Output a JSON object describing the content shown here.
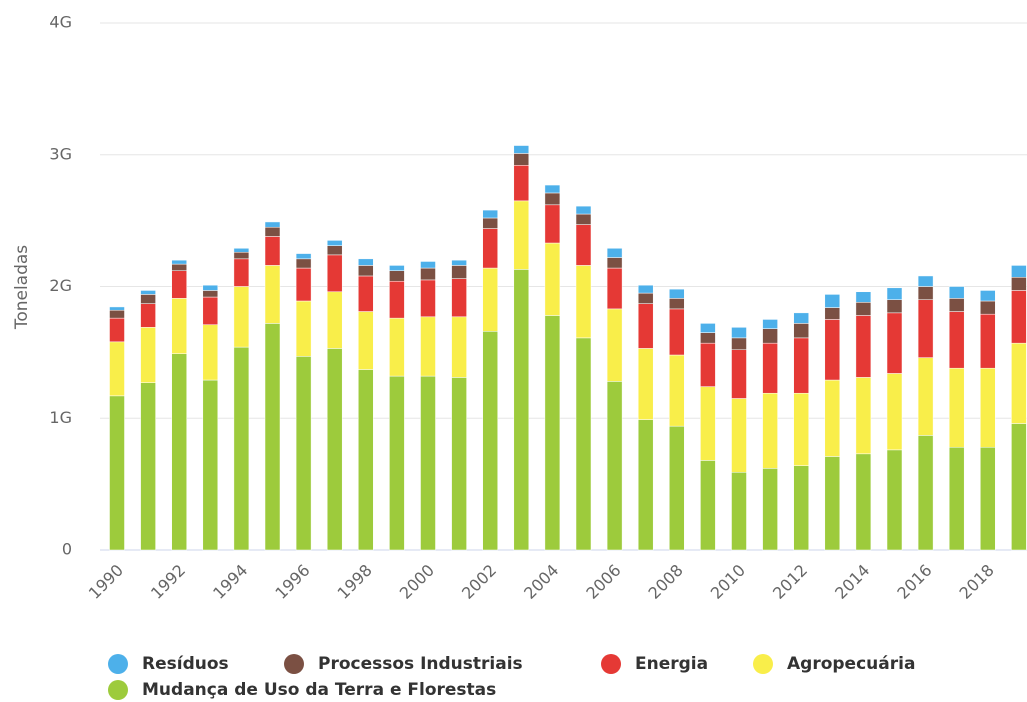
{
  "chart_data": {
    "type": "stacked-bar",
    "y_label": "Toneladas",
    "categories": [
      "1990",
      null,
      "1992",
      null,
      "1994",
      null,
      "1996",
      null,
      "1998",
      null,
      "2000",
      null,
      "2002",
      null,
      "2004",
      null,
      "2006",
      null,
      "2008",
      null,
      "2010",
      null,
      "2012",
      null,
      "2014",
      null,
      "2016",
      null,
      "2018",
      null
    ],
    "ylim": [
      0,
      4000000000.0
    ],
    "yticks": [
      0,
      {
        "value": 1000000000.0,
        "label": "1G"
      },
      {
        "value": 2000000000.0,
        "label": "2G"
      },
      {
        "value": 3000000000.0,
        "label": "3G"
      },
      {
        "value": 4000000000.0,
        "label": "4G"
      }
    ],
    "grid": true,
    "series": [
      {
        "name": "Resíduos",
        "color": "#4db0ea",
        "values": [
          25000000.0,
          30000000.0,
          30000000.0,
          40000000.0,
          30000000.0,
          40000000.0,
          40000000.0,
          40000000.0,
          50000000.0,
          40000000.0,
          50000000.0,
          40000000.0,
          60000000.0,
          60000000.0,
          60000000.0,
          60000000.0,
          70000000.0,
          60000000.0,
          70000000.0,
          70000000.0,
          80000000.0,
          70000000.0,
          80000000.0,
          100000000.0,
          80000000.0,
          90000000.0,
          80000000.0,
          90000000.0,
          80000000.0,
          90000000.0
        ]
      },
      {
        "name": "Processos Industriais",
        "color": "#7b5043",
        "values": [
          60000000.0,
          70000000.0,
          50000000.0,
          50000000.0,
          50000000.0,
          70000000.0,
          70000000.0,
          70000000.0,
          80000000.0,
          80000000.0,
          90000000.0,
          100000000.0,
          80000000.0,
          90000000.0,
          90000000.0,
          80000000.0,
          80000000.0,
          80000000.0,
          80000000.0,
          80000000.0,
          90000000.0,
          110000000.0,
          110000000.0,
          90000000.0,
          100000000.0,
          100000000.0,
          100000000.0,
          100000000.0,
          100000000.0,
          100000000.0
        ]
      },
      {
        "name": "Energia",
        "color": "#e53935",
        "values": [
          180000000.0,
          180000000.0,
          210000000.0,
          210000000.0,
          210000000.0,
          220000000.0,
          250000000.0,
          280000000.0,
          270000000.0,
          280000000.0,
          280000000.0,
          290000000.0,
          300000000.0,
          270000000.0,
          290000000.0,
          310000000.0,
          310000000.0,
          340000000.0,
          350000000.0,
          330000000.0,
          370000000.0,
          380000000.0,
          420000000.0,
          460000000.0,
          470000000.0,
          460000000.0,
          440000000.0,
          430000000.0,
          410000000.0,
          400000000.0
        ]
      },
      {
        "name": "Agropecuária",
        "color": "#f9ee4a",
        "values": [
          410000000.0,
          420000000.0,
          420000000.0,
          420000000.0,
          460000000.0,
          440000000.0,
          420000000.0,
          430000000.0,
          440000000.0,
          440000000.0,
          450000000.0,
          460000000.0,
          480000000.0,
          520000000.0,
          550000000.0,
          550000000.0,
          550000000.0,
          540000000.0,
          540000000.0,
          560000000.0,
          560000000.0,
          570000000.0,
          550000000.0,
          580000000.0,
          580000000.0,
          580000000.0,
          590000000.0,
          600000000.0,
          600000000.0,
          610000000.0
        ]
      },
      {
        "name": "Mudança de Uso da Terra e Florestas",
        "color": "#9dcb3c",
        "values": [
          1170000000.0,
          1270000000.0,
          1490000000.0,
          1290000000.0,
          1540000000.0,
          1720000000.0,
          1470000000.0,
          1530000000.0,
          1370000000.0,
          1320000000.0,
          1320000000.0,
          1310000000.0,
          1660000000.0,
          2130000000.0,
          1780000000.0,
          1610000000.0,
          1280000000.0,
          990000000.0,
          940000000.0,
          680000000.0,
          590000000.0,
          620000000.0,
          640000000.0,
          710000000.0,
          730000000.0,
          760000000.0,
          870000000.0,
          780000000.0,
          780000000.0,
          960000000.0
        ]
      }
    ]
  }
}
